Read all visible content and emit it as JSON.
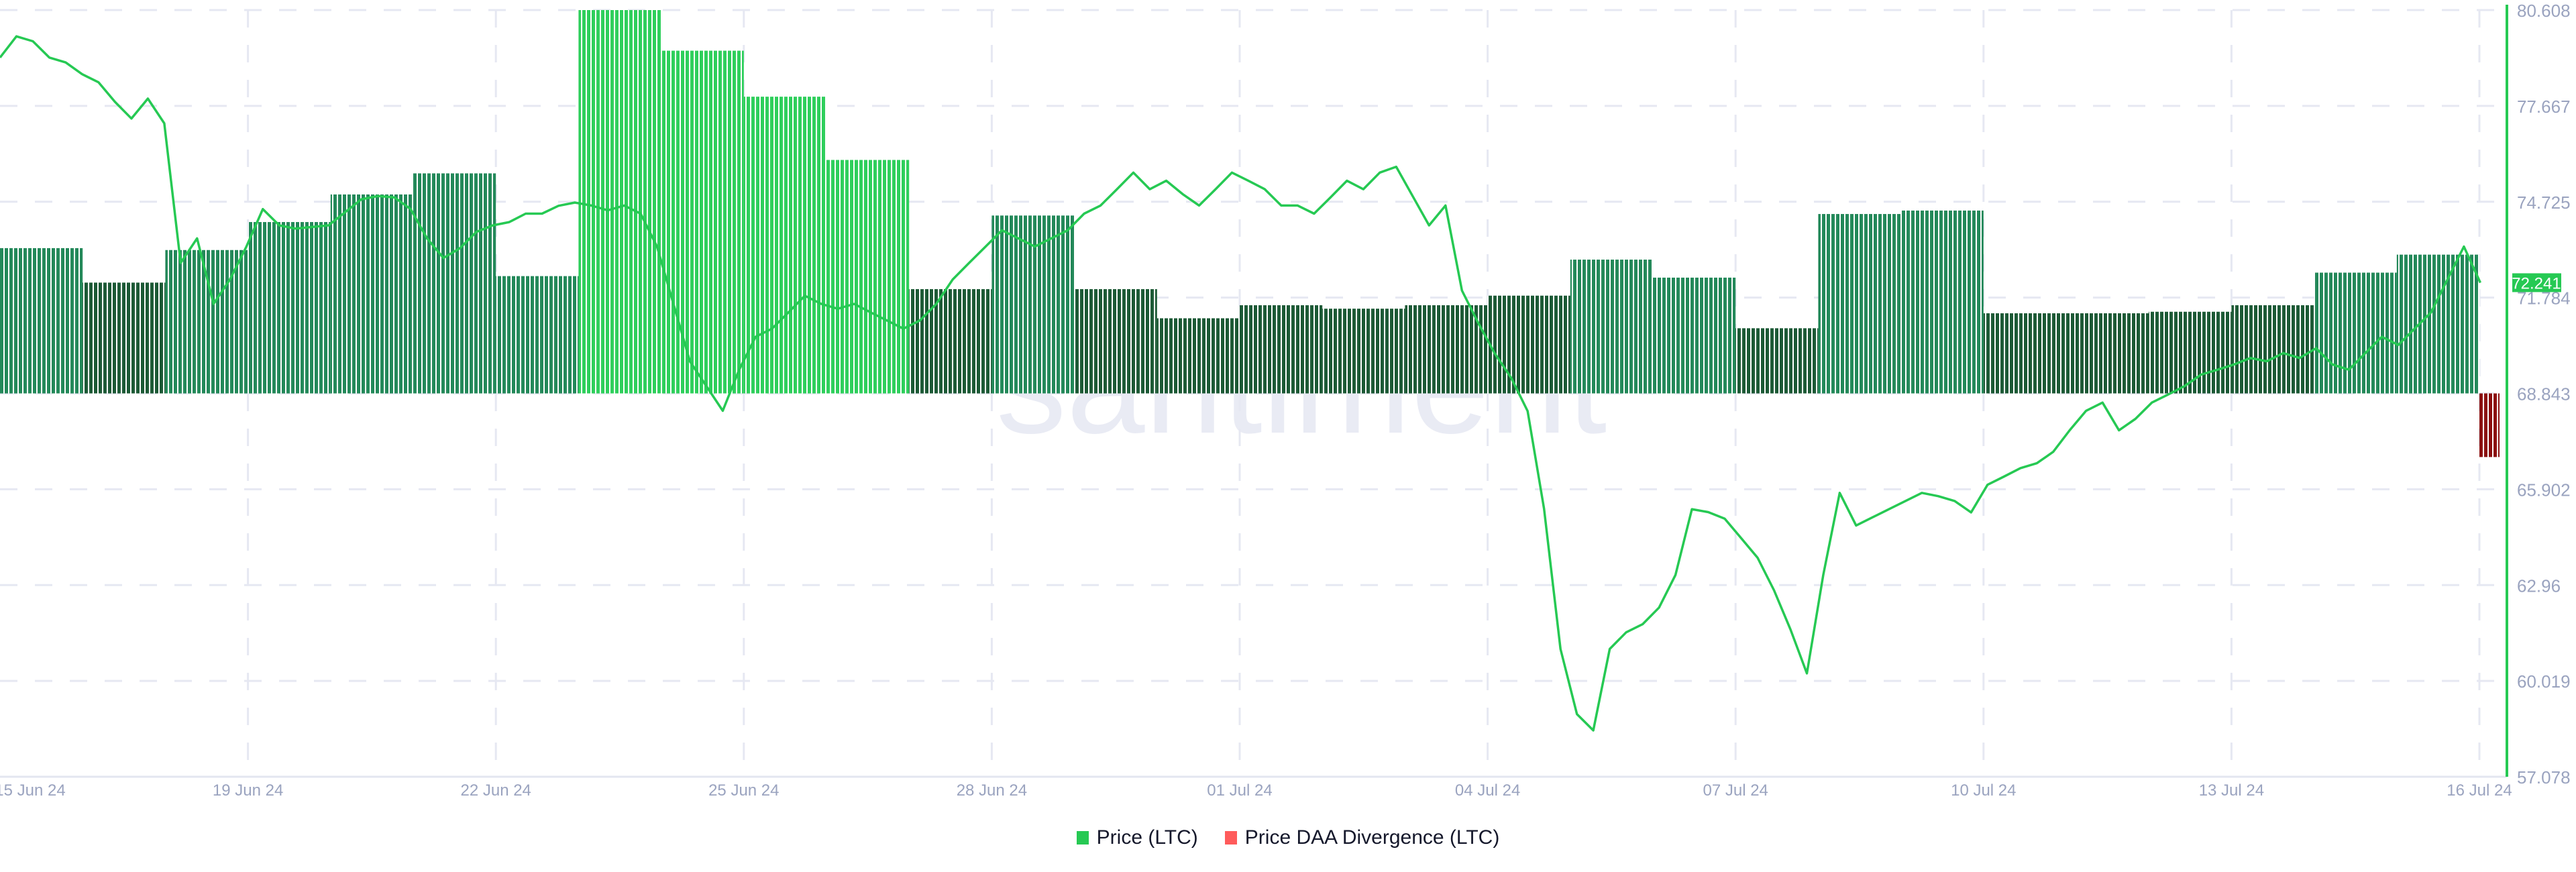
{
  "watermark": "santiment",
  "legend": [
    {
      "label": "Price (LTC)",
      "color": "#26c953"
    },
    {
      "label": "Price DAA Divergence (LTC)",
      "color": "#ff5b5b"
    }
  ],
  "current_price_label": "72.241",
  "chart_data": {
    "type": "bar+line",
    "title": "",
    "y_axis": {
      "ticks": [
        "80.608",
        "77.667",
        "74.725",
        "71.784",
        "68.843",
        "65.902",
        "62.96",
        "60.019",
        "57.078"
      ],
      "range": [
        57.078,
        80.608
      ],
      "position": "right"
    },
    "x_axis": {
      "ticks": [
        "15 Jun 24",
        "19 Jun 24",
        "22 Jun 24",
        "25 Jun 24",
        "28 Jun 24",
        "01 Jul 24",
        "04 Jul 24",
        "07 Jul 24",
        "10 Jul 24",
        "13 Jul 24",
        "16 Jul 24"
      ],
      "tick_day_offsets": [
        -1,
        3,
        6,
        9,
        12,
        15,
        18,
        21,
        24,
        27,
        30
      ]
    },
    "grid": true,
    "legend_position": "bottom-center",
    "divergence_series": {
      "name": "Price DAA Divergence (LTC)",
      "unit": "relative (max = 100)",
      "start_date": "16 Jun 24",
      "values": [
        37.9,
        28.9,
        37.4,
        44.7,
        51.9,
        57.4,
        30.6,
        100,
        89.4,
        77.4,
        60.9,
        27.2,
        46.4,
        27.2,
        19.6,
        23.0,
        22.1,
        23.0,
        25.5,
        34.9,
        30.2,
        17.0,
        46.8,
        47.7,
        20.9,
        20.9,
        21.3,
        23.0,
        31.5,
        36.2,
        -16.6
      ],
      "positive_color": "#26c953",
      "negative_color": "#8b1010"
    },
    "price_series": {
      "name": "Price (LTC)",
      "start_date": "16 Jun 24",
      "interval_hours": 4.77,
      "color": "#26c953",
      "values": [
        79.15,
        79.8,
        79.65,
        79.15,
        79.0,
        78.64,
        78.39,
        77.79,
        77.28,
        77.89,
        77.13,
        72.85,
        73.6,
        71.59,
        72.34,
        73.35,
        74.5,
        74.0,
        73.9,
        73.95,
        74.0,
        74.4,
        74.8,
        74.9,
        74.86,
        74.5,
        73.6,
        73.0,
        73.3,
        73.8,
        74.0,
        74.1,
        74.36,
        74.36,
        74.6,
        74.7,
        74.61,
        74.46,
        74.61,
        74.36,
        73.35,
        71.59,
        69.83,
        69.07,
        68.31,
        69.57,
        70.58,
        70.83,
        71.33,
        71.84,
        71.59,
        71.44,
        71.59,
        71.33,
        71.08,
        70.83,
        71.08,
        71.59,
        72.34,
        72.85,
        73.35,
        73.85,
        73.6,
        73.35,
        73.6,
        73.85,
        74.36,
        74.61,
        75.11,
        75.62,
        75.11,
        75.37,
        74.96,
        74.61,
        75.11,
        75.62,
        75.37,
        75.11,
        74.61,
        74.61,
        74.36,
        74.86,
        75.37,
        75.11,
        75.62,
        75.8,
        74.9,
        74.0,
        74.61,
        72.0,
        71.0,
        70.07,
        69.32,
        68.3,
        65.3,
        61.0,
        59.0,
        58.5,
        61.0,
        61.51,
        61.76,
        62.27,
        63.27,
        65.29,
        65.2,
        65.0,
        64.4,
        63.8,
        62.8,
        61.6,
        60.25,
        63.27,
        65.79,
        64.79,
        65.04,
        65.29,
        65.54,
        65.79,
        65.69,
        65.54,
        65.19,
        66.04,
        66.29,
        66.55,
        66.7,
        67.05,
        67.71,
        68.31,
        68.56,
        67.71,
        68.06,
        68.56,
        68.81,
        69.07,
        69.42,
        69.57,
        69.73,
        69.93,
        69.83,
        70.08,
        69.93,
        70.23,
        69.73,
        69.57,
        70.08,
        70.58,
        70.33,
        70.83,
        71.33,
        72.34,
        73.35,
        72.24
      ]
    }
  }
}
